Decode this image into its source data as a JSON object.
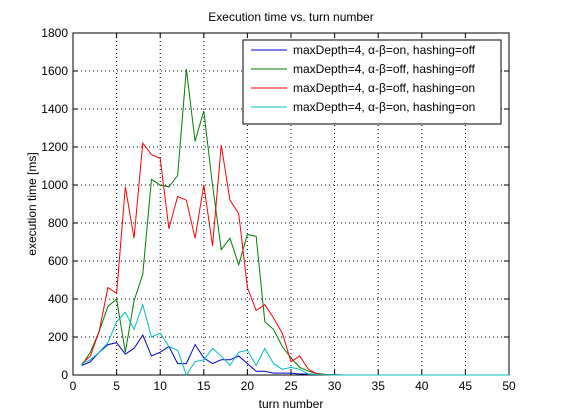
{
  "chart_data": {
    "type": "line",
    "title": "Execution time vs. turn number",
    "xlabel": "turn number",
    "ylabel": "execution time [ms]",
    "xlim": [
      0,
      50
    ],
    "ylim": [
      0,
      1800
    ],
    "xticks": [
      0,
      5,
      10,
      15,
      20,
      25,
      30,
      35,
      40,
      45,
      50
    ],
    "yticks": [
      0,
      200,
      400,
      600,
      800,
      1000,
      1200,
      1400,
      1600,
      1800
    ],
    "grid": "dotted",
    "legend_position": "top-right",
    "x": [
      1,
      2,
      3,
      4,
      5,
      6,
      7,
      8,
      9,
      10,
      11,
      12,
      13,
      14,
      15,
      16,
      17,
      18,
      19,
      20,
      21,
      22,
      23,
      24,
      25,
      26,
      27,
      28,
      29,
      30,
      31,
      32,
      33,
      34,
      35,
      36,
      37,
      38,
      39,
      40,
      41,
      42,
      43,
      44,
      45,
      46,
      47,
      48,
      49,
      50
    ],
    "series": [
      {
        "name": "maxDepth=4, α-β=on, hashing=off",
        "color": "#0000cc",
        "values": [
          50,
          70,
          120,
          160,
          170,
          110,
          140,
          210,
          100,
          120,
          150,
          60,
          60,
          160,
          90,
          60,
          80,
          80,
          100,
          60,
          20,
          20,
          10,
          10,
          10,
          5,
          5,
          3,
          2,
          1,
          0,
          0,
          0,
          0,
          0,
          0,
          0,
          0,
          0,
          0,
          0,
          0,
          0,
          0,
          0,
          0,
          0,
          0,
          0,
          0
        ]
      },
      {
        "name": "maxDepth=4, α-β=off, hashing=off",
        "color": "#007f00",
        "values": [
          50,
          120,
          230,
          360,
          400,
          120,
          390,
          530,
          1030,
          1000,
          990,
          1050,
          1610,
          1230,
          1390,
          1000,
          660,
          720,
          580,
          740,
          730,
          280,
          240,
          150,
          90,
          40,
          20,
          8,
          3,
          1,
          0,
          0,
          0,
          0,
          0,
          0,
          0,
          0,
          0,
          0,
          0,
          0,
          0,
          0,
          0,
          0,
          0,
          0,
          0,
          0
        ]
      },
      {
        "name": "maxDepth=4, α-β=off, hashing=on",
        "color": "#ff0000",
        "values": [
          60,
          100,
          230,
          460,
          430,
          990,
          720,
          1220,
          1160,
          1140,
          770,
          940,
          920,
          720,
          1000,
          680,
          1210,
          920,
          850,
          460,
          340,
          370,
          300,
          220,
          70,
          100,
          30,
          5,
          1,
          0,
          0,
          0,
          0,
          0,
          0,
          0,
          0,
          0,
          0,
          0,
          0,
          0,
          0,
          0,
          0,
          0,
          0,
          0,
          0,
          0
        ]
      },
      {
        "name": "maxDepth=4, α-β=on, hashing=on",
        "color": "#00bfbf",
        "values": [
          60,
          80,
          120,
          170,
          280,
          330,
          240,
          370,
          200,
          220,
          150,
          130,
          0,
          70,
          80,
          140,
          100,
          50,
          120,
          130,
          50,
          140,
          60,
          30,
          40,
          30,
          5,
          2,
          1,
          0,
          0,
          0,
          0,
          0,
          0,
          0,
          0,
          0,
          0,
          0,
          0,
          0,
          0,
          0,
          0,
          0,
          0,
          0,
          0,
          0
        ]
      }
    ]
  }
}
